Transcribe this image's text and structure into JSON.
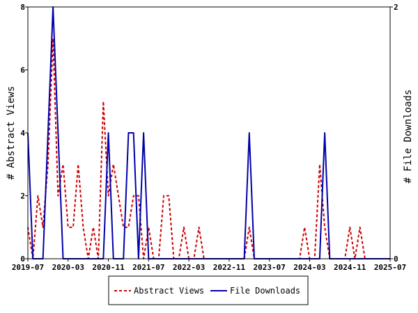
{
  "chart_data": {
    "type": "line",
    "x_ticks": [
      "2019-07",
      "2020-03",
      "2020-11",
      "2021-07",
      "2022-03",
      "2022-11",
      "2023-07",
      "2024-03",
      "2024-11",
      "2025-07"
    ],
    "x_range": [
      "2019-07",
      "2025-07"
    ],
    "y_left": {
      "label": "# Abstract Views",
      "ticks": [
        "0",
        "2",
        "4",
        "6",
        "8"
      ],
      "range": [
        0,
        8
      ]
    },
    "y_right": {
      "label": "# File Downloads",
      "ticks": [
        "0",
        "2"
      ],
      "range": [
        0,
        2
      ]
    },
    "legend_position": "bottom-center",
    "grid": false,
    "series": [
      {
        "name": "Abstract Views",
        "axis": "left",
        "color": "#cc0000",
        "style": "dashed",
        "points": [
          [
            "2019-07",
            1
          ],
          [
            "2019-08",
            0
          ],
          [
            "2019-09",
            2
          ],
          [
            "2019-10",
            1
          ],
          [
            "2019-11",
            3
          ],
          [
            "2019-12",
            7
          ],
          [
            "2020-01",
            2
          ],
          [
            "2020-02",
            3
          ],
          [
            "2020-03",
            1
          ],
          [
            "2020-04",
            1
          ],
          [
            "2020-05",
            3
          ],
          [
            "2020-06",
            1
          ],
          [
            "2020-07",
            0
          ],
          [
            "2020-08",
            1
          ],
          [
            "2020-09",
            0
          ],
          [
            "2020-10",
            5
          ],
          [
            "2020-11",
            2
          ],
          [
            "2020-12",
            3
          ],
          [
            "2021-01",
            2
          ],
          [
            "2021-02",
            1
          ],
          [
            "2021-03",
            1
          ],
          [
            "2021-04",
            2
          ],
          [
            "2021-05",
            2
          ],
          [
            "2021-06",
            0
          ],
          [
            "2021-07",
            1
          ],
          [
            "2021-08",
            0
          ],
          [
            "2021-09",
            0
          ],
          [
            "2021-10",
            2
          ],
          [
            "2021-11",
            2
          ],
          [
            "2021-12",
            0
          ],
          [
            "2022-01",
            0
          ],
          [
            "2022-02",
            1
          ],
          [
            "2022-03",
            0
          ],
          [
            "2022-04",
            0
          ],
          [
            "2022-05",
            1
          ],
          [
            "2022-06",
            0
          ],
          [
            "2022-07",
            0
          ],
          [
            "2022-08",
            0
          ],
          [
            "2022-09",
            0
          ],
          [
            "2022-10",
            0
          ],
          [
            "2022-11",
            0
          ],
          [
            "2022-12",
            0
          ],
          [
            "2023-01",
            0
          ],
          [
            "2023-02",
            0
          ],
          [
            "2023-03",
            1
          ],
          [
            "2023-04",
            0
          ],
          [
            "2023-05",
            0
          ],
          [
            "2023-06",
            0
          ],
          [
            "2023-07",
            0
          ],
          [
            "2023-08",
            0
          ],
          [
            "2023-09",
            0
          ],
          [
            "2023-10",
            0
          ],
          [
            "2023-11",
            0
          ],
          [
            "2023-12",
            0
          ],
          [
            "2024-01",
            0
          ],
          [
            "2024-02",
            1
          ],
          [
            "2024-03",
            0
          ],
          [
            "2024-04",
            0
          ],
          [
            "2024-05",
            3
          ],
          [
            "2024-06",
            1
          ],
          [
            "2024-07",
            0
          ],
          [
            "2024-08",
            0
          ],
          [
            "2024-09",
            0
          ],
          [
            "2024-10",
            0
          ],
          [
            "2024-11",
            1
          ],
          [
            "2024-12",
            0
          ],
          [
            "2025-01",
            1
          ],
          [
            "2025-02",
            0
          ],
          [
            "2025-03",
            0
          ],
          [
            "2025-04",
            0
          ],
          [
            "2025-05",
            0
          ],
          [
            "2025-06",
            0
          ],
          [
            "2025-07",
            0
          ]
        ]
      },
      {
        "name": "File Downloads",
        "axis": "right",
        "color": "#0000aa",
        "style": "solid",
        "points": [
          [
            "2019-07",
            1
          ],
          [
            "2019-08",
            0
          ],
          [
            "2019-09",
            0
          ],
          [
            "2019-10",
            0
          ],
          [
            "2019-11",
            1
          ],
          [
            "2019-12",
            2
          ],
          [
            "2020-01",
            1
          ],
          [
            "2020-02",
            0
          ],
          [
            "2020-03",
            0
          ],
          [
            "2020-04",
            0
          ],
          [
            "2020-05",
            0
          ],
          [
            "2020-06",
            0
          ],
          [
            "2020-07",
            0
          ],
          [
            "2020-08",
            0
          ],
          [
            "2020-09",
            0
          ],
          [
            "2020-10",
            0
          ],
          [
            "2020-11",
            1
          ],
          [
            "2020-12",
            0
          ],
          [
            "2021-01",
            0
          ],
          [
            "2021-02",
            0
          ],
          [
            "2021-03",
            1
          ],
          [
            "2021-04",
            1
          ],
          [
            "2021-05",
            0
          ],
          [
            "2021-06",
            1
          ],
          [
            "2021-07",
            0
          ],
          [
            "2021-08",
            0
          ],
          [
            "2021-09",
            0
          ],
          [
            "2021-10",
            0
          ],
          [
            "2021-11",
            0
          ],
          [
            "2021-12",
            0
          ],
          [
            "2022-01",
            0
          ],
          [
            "2022-02",
            0
          ],
          [
            "2022-03",
            0
          ],
          [
            "2022-04",
            0
          ],
          [
            "2022-05",
            0
          ],
          [
            "2022-06",
            0
          ],
          [
            "2022-07",
            0
          ],
          [
            "2022-08",
            0
          ],
          [
            "2022-09",
            0
          ],
          [
            "2022-10",
            0
          ],
          [
            "2022-11",
            0
          ],
          [
            "2022-12",
            0
          ],
          [
            "2023-01",
            0
          ],
          [
            "2023-02",
            0
          ],
          [
            "2023-03",
            1
          ],
          [
            "2023-04",
            0
          ],
          [
            "2023-05",
            0
          ],
          [
            "2023-06",
            0
          ],
          [
            "2023-07",
            0
          ],
          [
            "2023-08",
            0
          ],
          [
            "2023-09",
            0
          ],
          [
            "2023-10",
            0
          ],
          [
            "2023-11",
            0
          ],
          [
            "2023-12",
            0
          ],
          [
            "2024-01",
            0
          ],
          [
            "2024-02",
            0
          ],
          [
            "2024-03",
            0
          ],
          [
            "2024-04",
            0
          ],
          [
            "2024-05",
            0
          ],
          [
            "2024-06",
            1
          ],
          [
            "2024-07",
            0
          ],
          [
            "2024-08",
            0
          ],
          [
            "2024-09",
            0
          ],
          [
            "2024-10",
            0
          ],
          [
            "2024-11",
            0
          ],
          [
            "2024-12",
            0
          ],
          [
            "2025-01",
            0
          ],
          [
            "2025-02",
            0
          ],
          [
            "2025-03",
            0
          ],
          [
            "2025-04",
            0
          ],
          [
            "2025-05",
            0
          ],
          [
            "2025-06",
            0
          ],
          [
            "2025-07",
            0
          ]
        ]
      }
    ]
  }
}
